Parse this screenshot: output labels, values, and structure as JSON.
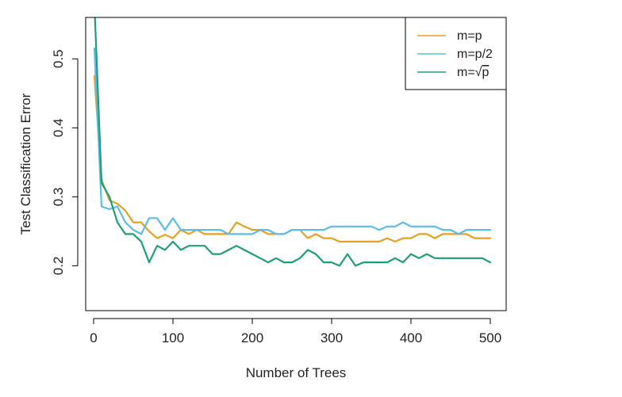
{
  "chart_data": {
    "type": "line",
    "title": "",
    "xlabel": "Number of Trees",
    "ylabel": "Test Classification Error",
    "xlim": [
      -10,
      520
    ],
    "ylim": [
      0.135,
      0.56
    ],
    "xticks": [
      0,
      100,
      200,
      300,
      400,
      500
    ],
    "xtick_labels": [
      "0",
      "100",
      "200",
      "300",
      "400",
      "500"
    ],
    "yticks": [
      0.2,
      0.3,
      0.4,
      0.5
    ],
    "ytick_labels": [
      "0.2",
      "0.3",
      "0.4",
      "0.5"
    ],
    "grid": false,
    "legend_position": "top-right",
    "x": [
      1,
      10,
      20,
      30,
      40,
      50,
      60,
      70,
      80,
      90,
      100,
      110,
      120,
      130,
      140,
      150,
      160,
      170,
      180,
      190,
      200,
      210,
      220,
      230,
      240,
      250,
      260,
      270,
      280,
      290,
      300,
      310,
      320,
      330,
      340,
      350,
      360,
      370,
      380,
      390,
      400,
      410,
      420,
      430,
      440,
      450,
      460,
      470,
      480,
      490,
      500
    ],
    "series": [
      {
        "name": "m=p",
        "color": "#e6a020",
        "values": [
          0.475,
          0.325,
          0.295,
          0.29,
          0.28,
          0.263,
          0.263,
          0.25,
          0.24,
          0.245,
          0.24,
          0.252,
          0.246,
          0.252,
          0.246,
          0.246,
          0.246,
          0.246,
          0.263,
          0.257,
          0.252,
          0.252,
          0.246,
          0.246,
          0.246,
          0.252,
          0.252,
          0.24,
          0.246,
          0.24,
          0.24,
          0.235,
          0.235,
          0.235,
          0.235,
          0.235,
          0.235,
          0.24,
          0.235,
          0.24,
          0.24,
          0.246,
          0.246,
          0.24,
          0.246,
          0.246,
          0.246,
          0.246,
          0.24,
          0.24,
          0.24
        ]
      },
      {
        "name": "m=p/2",
        "color": "#5bbce8",
        "values": [
          0.515,
          0.286,
          0.282,
          0.286,
          0.263,
          0.252,
          0.246,
          0.269,
          0.269,
          0.252,
          0.269,
          0.252,
          0.252,
          0.252,
          0.252,
          0.252,
          0.252,
          0.246,
          0.246,
          0.246,
          0.246,
          0.252,
          0.252,
          0.246,
          0.246,
          0.252,
          0.252,
          0.252,
          0.252,
          0.252,
          0.257,
          0.257,
          0.257,
          0.257,
          0.257,
          0.257,
          0.252,
          0.257,
          0.257,
          0.263,
          0.257,
          0.257,
          0.257,
          0.257,
          0.252,
          0.252,
          0.246,
          0.252,
          0.252,
          0.252,
          0.252
        ]
      },
      {
        "name": "m=√p",
        "label_prefix": "m=",
        "label_radicand": "p",
        "color": "#1e9e78",
        "values": [
          0.58,
          0.32,
          0.3,
          0.263,
          0.246,
          0.246,
          0.235,
          0.205,
          0.229,
          0.223,
          0.235,
          0.223,
          0.229,
          0.229,
          0.229,
          0.217,
          0.217,
          0.223,
          0.229,
          0.223,
          0.217,
          0.211,
          0.205,
          0.211,
          0.205,
          0.205,
          0.211,
          0.223,
          0.217,
          0.205,
          0.205,
          0.2,
          0.217,
          0.2,
          0.205,
          0.205,
          0.205,
          0.205,
          0.211,
          0.205,
          0.217,
          0.211,
          0.217,
          0.211,
          0.211,
          0.211,
          0.211,
          0.211,
          0.211,
          0.211,
          0.205
        ]
      }
    ]
  }
}
